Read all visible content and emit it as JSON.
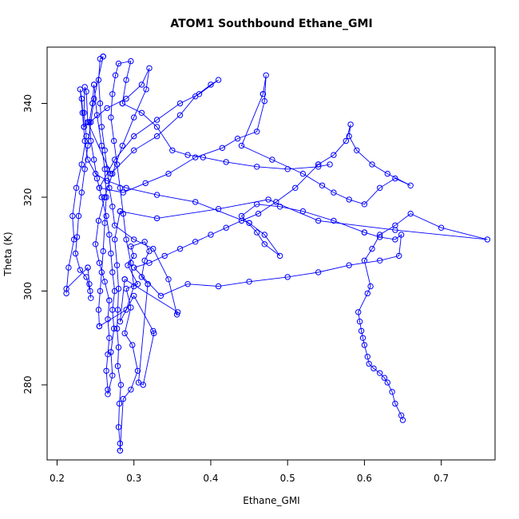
{
  "chart_data": {
    "type": "scatter",
    "title": "ATOM1 Southbound Ethane_GMI",
    "xlabel": "Ethane_GMI",
    "ylabel": "Theta (K)",
    "xlim": [
      0.187,
      0.77
    ],
    "ylim": [
      264,
      352
    ],
    "xticks": [
      0.2,
      0.3,
      0.4,
      0.5,
      0.6,
      0.7
    ],
    "xtick_labels": [
      "0.2",
      "0.3",
      "0.4",
      "0.5",
      "0.6",
      "0.7"
    ],
    "yticks": [
      280,
      300,
      320,
      340
    ],
    "ytick_labels": [
      "280",
      "300",
      "320",
      "340"
    ],
    "grid": false,
    "legend": "none",
    "marker": "open circle",
    "connected": true,
    "color": "#0000ff",
    "series": [
      {
        "values": [
          [
            0.65,
            272.5
          ],
          [
            0.648,
            273.5
          ],
          [
            0.64,
            276.0
          ],
          [
            0.636,
            278.5
          ],
          [
            0.63,
            280.5
          ],
          [
            0.626,
            281.5
          ],
          [
            0.62,
            282.5
          ],
          [
            0.612,
            283.5
          ],
          [
            0.606,
            284.5
          ],
          [
            0.604,
            286.0
          ],
          [
            0.6,
            288.5
          ],
          [
            0.598,
            290.0
          ],
          [
            0.596,
            291.5
          ],
          [
            0.594,
            293.5
          ],
          [
            0.592,
            295.5
          ],
          [
            0.604,
            299.5
          ],
          [
            0.608,
            301.0
          ],
          [
            0.6,
            306.5
          ],
          [
            0.61,
            309.0
          ],
          [
            0.62,
            312.0
          ],
          [
            0.64,
            314.0
          ],
          [
            0.66,
            316.5
          ],
          [
            0.7,
            313.5
          ],
          [
            0.76,
            311.0
          ],
          [
            0.64,
            313.0
          ],
          [
            0.54,
            315.0
          ],
          [
            0.475,
            319.5
          ],
          [
            0.41,
            317.5
          ],
          [
            0.33,
            315.5
          ],
          [
            0.282,
            317.0
          ]
        ]
      },
      {
        "values": [
          [
            0.282,
            317.0
          ],
          [
            0.275,
            311.0
          ],
          [
            0.278,
            305.5
          ],
          [
            0.28,
            300.5
          ],
          [
            0.279,
            296.0
          ],
          [
            0.278,
            292.0
          ],
          [
            0.28,
            288.0
          ],
          [
            0.279,
            284.0
          ],
          [
            0.283,
            280.0
          ],
          [
            0.281,
            276.0
          ],
          [
            0.28,
            271.0
          ],
          [
            0.282,
            267.5
          ],
          [
            0.282,
            266.0
          ]
        ]
      },
      {
        "values": [
          [
            0.282,
            266.0
          ],
          [
            0.286,
            277.0
          ],
          [
            0.296,
            279.0
          ],
          [
            0.305,
            283.0
          ],
          [
            0.298,
            288.5
          ],
          [
            0.288,
            291.0
          ],
          [
            0.296,
            296.5
          ],
          [
            0.29,
            300.5
          ],
          [
            0.305,
            301.5
          ],
          [
            0.292,
            305.5
          ],
          [
            0.3,
            307.5
          ],
          [
            0.296,
            309.5
          ],
          [
            0.314,
            310.5
          ],
          [
            0.32,
            308.5
          ],
          [
            0.314,
            306.5
          ],
          [
            0.31,
            303.0
          ],
          [
            0.318,
            301.5
          ]
        ]
      },
      {
        "values": [
          [
            0.318,
            301.5
          ],
          [
            0.306,
            280.5
          ],
          [
            0.312,
            280.0
          ],
          [
            0.326,
            291.0
          ],
          [
            0.325,
            291.5
          ],
          [
            0.3,
            299.0
          ],
          [
            0.282,
            293.5
          ],
          [
            0.288,
            302.5
          ]
        ]
      },
      {
        "values": [
          [
            0.288,
            302.5
          ],
          [
            0.357,
            295.5
          ],
          [
            0.356,
            295.0
          ],
          [
            0.345,
            302.5
          ],
          [
            0.325,
            309.0
          ],
          [
            0.3,
            311.0
          ],
          [
            0.275,
            314.0
          ],
          [
            0.272,
            318.0
          ],
          [
            0.268,
            322.0
          ],
          [
            0.265,
            326.0
          ],
          [
            0.262,
            330.0
          ],
          [
            0.258,
            335.0
          ],
          [
            0.256,
            340.0
          ],
          [
            0.254,
            345.0
          ],
          [
            0.256,
            349.5
          ],
          [
            0.26,
            350.0
          ]
        ]
      },
      {
        "values": [
          [
            0.26,
            350.0
          ],
          [
            0.248,
            341.0
          ],
          [
            0.244,
            336.0
          ],
          [
            0.24,
            331.0
          ],
          [
            0.236,
            326.0
          ],
          [
            0.232,
            321.0
          ],
          [
            0.228,
            316.0
          ],
          [
            0.226,
            311.5
          ],
          [
            0.224,
            308.0
          ],
          [
            0.23,
            304.5
          ],
          [
            0.238,
            303.0
          ],
          [
            0.243,
            300.0
          ],
          [
            0.244,
            298.5
          ],
          [
            0.242,
            301.5
          ],
          [
            0.24,
            305.0
          ]
        ]
      },
      {
        "values": [
          [
            0.24,
            305.0
          ],
          [
            0.212,
            300.5
          ],
          [
            0.212,
            299.5
          ],
          [
            0.215,
            305.0
          ],
          [
            0.222,
            311.0
          ],
          [
            0.22,
            316.0
          ],
          [
            0.225,
            322.0
          ],
          [
            0.232,
            327.0
          ],
          [
            0.238,
            333.0
          ],
          [
            0.235,
            338.0
          ],
          [
            0.236,
            343.5
          ],
          [
            0.238,
            342.5
          ],
          [
            0.24,
            336.0
          ]
        ]
      },
      {
        "values": [
          [
            0.24,
            336.0
          ],
          [
            0.27,
            325.0
          ],
          [
            0.3,
            330.0
          ],
          [
            0.33,
            333.0
          ],
          [
            0.36,
            337.5
          ],
          [
            0.38,
            341.5
          ],
          [
            0.4,
            344.0
          ],
          [
            0.41,
            345.0
          ],
          [
            0.385,
            342.0
          ],
          [
            0.36,
            340.0
          ],
          [
            0.33,
            336.5
          ],
          [
            0.3,
            333.0
          ],
          [
            0.275,
            328.0
          ],
          [
            0.255,
            322.0
          ]
        ]
      },
      {
        "values": [
          [
            0.255,
            322.0
          ],
          [
            0.286,
            321.0
          ],
          [
            0.315,
            323.0
          ],
          [
            0.345,
            325.0
          ],
          [
            0.38,
            328.5
          ],
          [
            0.415,
            330.5
          ],
          [
            0.435,
            332.5
          ],
          [
            0.46,
            334.0
          ],
          [
            0.47,
            340.5
          ],
          [
            0.472,
            346.0
          ],
          [
            0.468,
            342.0
          ]
        ]
      },
      {
        "values": [
          [
            0.468,
            342.0
          ],
          [
            0.44,
            331.0
          ],
          [
            0.48,
            328.0
          ],
          [
            0.52,
            325.0
          ],
          [
            0.545,
            322.5
          ],
          [
            0.56,
            321.0
          ],
          [
            0.58,
            319.5
          ],
          [
            0.6,
            318.5
          ],
          [
            0.62,
            322.0
          ],
          [
            0.64,
            324.0
          ],
          [
            0.66,
            322.5
          ],
          [
            0.63,
            325.0
          ],
          [
            0.61,
            327.0
          ],
          [
            0.59,
            330.0
          ],
          [
            0.58,
            333.0
          ],
          [
            0.582,
            335.5
          ],
          [
            0.576,
            332.0
          ],
          [
            0.56,
            329.0
          ],
          [
            0.54,
            327.0
          ]
        ]
      },
      {
        "values": [
          [
            0.54,
            327.0
          ],
          [
            0.51,
            322.0
          ],
          [
            0.485,
            319.0
          ],
          [
            0.462,
            316.5
          ],
          [
            0.44,
            315.0
          ],
          [
            0.42,
            313.5
          ],
          [
            0.4,
            312.0
          ],
          [
            0.38,
            310.5
          ],
          [
            0.36,
            309.0
          ],
          [
            0.34,
            307.5
          ],
          [
            0.32,
            306.0
          ],
          [
            0.3,
            305.0
          ]
        ]
      },
      {
        "values": [
          [
            0.3,
            305.0
          ],
          [
            0.335,
            299.0
          ],
          [
            0.37,
            301.5
          ],
          [
            0.41,
            301.0
          ],
          [
            0.45,
            302.0
          ],
          [
            0.5,
            303.0
          ],
          [
            0.54,
            304.0
          ],
          [
            0.58,
            305.5
          ],
          [
            0.62,
            306.5
          ],
          [
            0.645,
            307.5
          ],
          [
            0.648,
            312.0
          ],
          [
            0.64,
            311.0
          ],
          [
            0.62,
            311.5
          ],
          [
            0.6,
            312.5
          ]
        ]
      },
      {
        "values": [
          [
            0.6,
            312.5
          ],
          [
            0.56,
            315.0
          ],
          [
            0.52,
            317.0
          ],
          [
            0.49,
            318.0
          ],
          [
            0.46,
            318.5
          ],
          [
            0.44,
            316.0
          ],
          [
            0.46,
            312.5
          ],
          [
            0.47,
            310.0
          ],
          [
            0.49,
            307.5
          ],
          [
            0.47,
            312.0
          ],
          [
            0.45,
            314.5
          ]
        ]
      },
      {
        "values": [
          [
            0.45,
            314.5
          ],
          [
            0.38,
            319.0
          ],
          [
            0.33,
            320.5
          ],
          [
            0.29,
            322.0
          ],
          [
            0.265,
            323.5
          ],
          [
            0.25,
            325.0
          ],
          [
            0.24,
            328.0
          ],
          [
            0.236,
            332.0
          ],
          [
            0.233,
            338.0
          ],
          [
            0.23,
            343.0
          ],
          [
            0.232,
            341.0
          ],
          [
            0.235,
            335.0
          ]
        ]
      },
      {
        "values": [
          [
            0.235,
            335.0
          ],
          [
            0.265,
            339.0
          ],
          [
            0.29,
            341.0
          ],
          [
            0.31,
            344.0
          ],
          [
            0.32,
            347.5
          ],
          [
            0.316,
            343.0
          ],
          [
            0.3,
            337.0
          ],
          [
            0.285,
            331.0
          ],
          [
            0.272,
            325.0
          ],
          [
            0.262,
            320.0
          ],
          [
            0.254,
            315.0
          ],
          [
            0.25,
            310.0
          ],
          [
            0.255,
            306.0
          ],
          [
            0.262,
            302.0
          ],
          [
            0.268,
            298.0
          ]
        ]
      },
      {
        "values": [
          [
            0.268,
            298.0
          ],
          [
            0.266,
            294.0
          ],
          [
            0.268,
            290.0
          ],
          [
            0.266,
            286.5
          ],
          [
            0.264,
            283.0
          ],
          [
            0.266,
            279.0
          ],
          [
            0.266,
            278.0
          ],
          [
            0.272,
            282.0
          ],
          [
            0.27,
            287.0
          ],
          [
            0.274,
            292.0
          ],
          [
            0.272,
            296.0
          ],
          [
            0.275,
            300.0
          ],
          [
            0.272,
            304.0
          ],
          [
            0.27,
            308.0
          ],
          [
            0.268,
            312.0
          ],
          [
            0.264,
            316.0
          ],
          [
            0.258,
            320.0
          ],
          [
            0.252,
            324.0
          ],
          [
            0.248,
            328.0
          ],
          [
            0.244,
            332.0
          ],
          [
            0.242,
            336.0
          ],
          [
            0.246,
            340.0
          ],
          [
            0.248,
            344.0
          ]
        ]
      },
      {
        "values": [
          [
            0.248,
            344.0
          ],
          [
            0.252,
            337.5
          ],
          [
            0.258,
            331.0
          ],
          [
            0.262,
            326.0
          ],
          [
            0.264,
            320.0
          ],
          [
            0.262,
            314.5
          ],
          [
            0.26,
            308.5
          ],
          [
            0.258,
            304.0
          ],
          [
            0.256,
            300.0
          ],
          [
            0.254,
            296.0
          ],
          [
            0.255,
            292.5
          ]
        ]
      },
      {
        "values": [
          [
            0.255,
            292.5
          ],
          [
            0.29,
            296.0
          ],
          [
            0.3,
            301.0
          ],
          [
            0.296,
            306.0
          ],
          [
            0.29,
            311.0
          ],
          [
            0.286,
            316.5
          ],
          [
            0.282,
            322.0
          ],
          [
            0.278,
            327.0
          ],
          [
            0.274,
            332.0
          ],
          [
            0.27,
            337.0
          ],
          [
            0.272,
            342.0
          ],
          [
            0.276,
            346.0
          ],
          [
            0.28,
            348.5
          ],
          [
            0.296,
            349.0
          ],
          [
            0.29,
            345.0
          ],
          [
            0.285,
            340.0
          ]
        ]
      },
      {
        "values": [
          [
            0.285,
            340.0
          ],
          [
            0.31,
            338.0
          ],
          [
            0.33,
            335.0
          ],
          [
            0.35,
            330.0
          ],
          [
            0.37,
            329.0
          ],
          [
            0.39,
            328.5
          ],
          [
            0.42,
            327.5
          ],
          [
            0.46,
            326.5
          ],
          [
            0.5,
            326.0
          ],
          [
            0.54,
            326.5
          ],
          [
            0.555,
            327.0
          ]
        ]
      }
    ]
  }
}
